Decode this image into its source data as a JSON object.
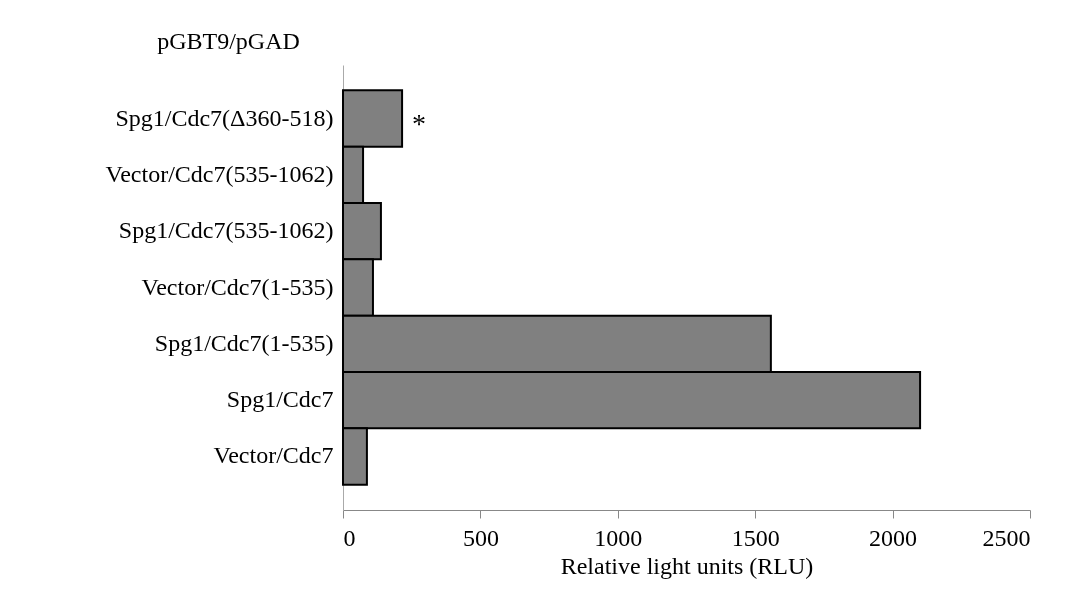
{
  "chart_data": {
    "type": "bar",
    "orientation": "horizontal",
    "ylabel": "pGBT9/pGAD",
    "xlabel": "Relative light units (RLU)",
    "categories": [
      "Spg1/Cdc7(Δ360-518)",
      "Vector/Cdc7(535-1062)",
      "Spg1/Cdc7(535-1062)",
      "Vector/Cdc7(1-535)",
      "Spg1/Cdc7(1-535)",
      "Spg1/Cdc7",
      "Vector/Cdc7"
    ],
    "values": [
      215,
      73,
      138,
      109,
      1557,
      2100,
      87
    ],
    "color": "#808080",
    "xlim": [
      0,
      2500
    ],
    "xticks": [
      0,
      500,
      1000,
      1500,
      2000,
      2500
    ],
    "annotations": [
      {
        "text": "*",
        "x": 215,
        "y": "Spg1/Cdc7(Δ360-518)"
      }
    ]
  }
}
